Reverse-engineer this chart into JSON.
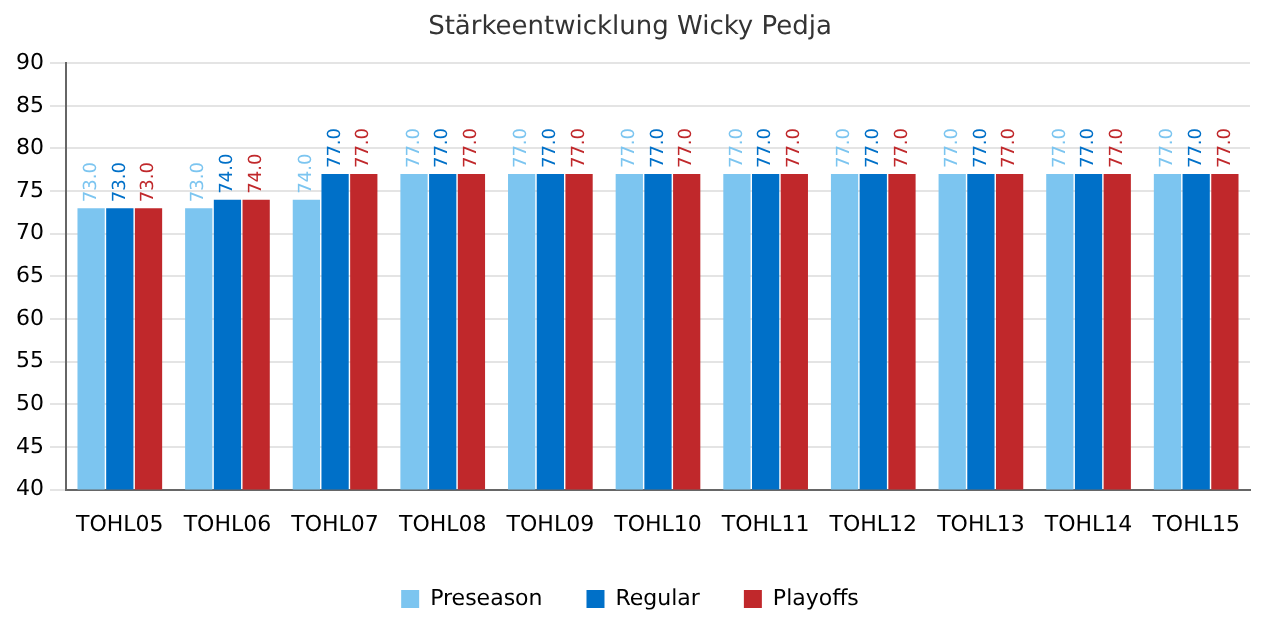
{
  "chart_data": {
    "type": "bar",
    "title": "Stärkeentwicklung Wicky Pedja",
    "categories": [
      "TOHL05",
      "TOHL06",
      "TOHL07",
      "TOHL08",
      "TOHL09",
      "TOHL10",
      "TOHL11",
      "TOHL12",
      "TOHL13",
      "TOHL14",
      "TOHL15"
    ],
    "series": [
      {
        "name": "Preseason",
        "color": "#7cc5f0",
        "values": [
          73,
          73,
          74,
          77,
          77,
          77,
          77,
          77,
          77,
          77,
          77
        ],
        "value_labels": [
          "73.0",
          "73.0",
          "74.0",
          "77.0",
          "77.0",
          "77.0",
          "77.0",
          "77.0",
          "77.0",
          "77.0",
          "77.0"
        ]
      },
      {
        "name": "Regular",
        "color": "#0070c8",
        "values": [
          73,
          74,
          77,
          77,
          77,
          77,
          77,
          77,
          77,
          77,
          77
        ],
        "value_labels": [
          "73.0",
          "74.0",
          "77.0",
          "77.0",
          "77.0",
          "77.0",
          "77.0",
          "77.0",
          "77.0",
          "77.0",
          "77.0"
        ]
      },
      {
        "name": "Playoffs",
        "color": "#c0282b",
        "values": [
          73,
          74,
          77,
          77,
          77,
          77,
          77,
          77,
          77,
          77,
          77
        ],
        "value_labels": [
          "73.0",
          "74.0",
          "77.0",
          "77.0",
          "77.0",
          "77.0",
          "77.0",
          "77.0",
          "77.0",
          "77.0",
          "77.0"
        ]
      }
    ],
    "ylim": [
      40,
      90
    ],
    "yticks": [
      40,
      45,
      50,
      55,
      60,
      65,
      70,
      75,
      80,
      85,
      90
    ],
    "grid": "y",
    "legend": "bottom"
  }
}
